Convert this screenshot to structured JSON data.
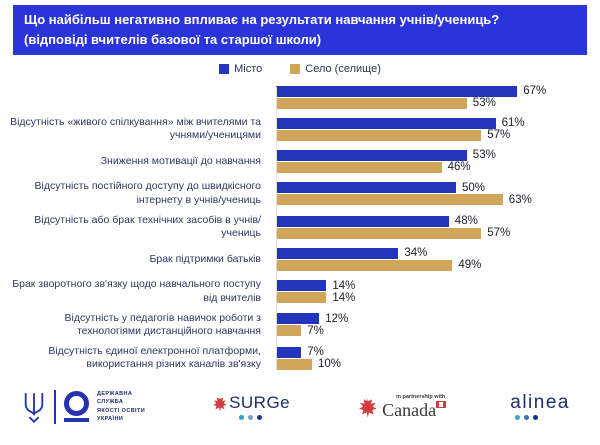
{
  "header": {
    "title_line1": "Що найбільш негативно впливає на результати навчання учнів/учениць?",
    "title_line2": "(відповіді вчителів базової та старшої школи)",
    "background": "#2b34d9",
    "text_color": "#ffffff"
  },
  "chart_data": {
    "type": "bar",
    "orientation": "horizontal",
    "title": "Що найбільш негативно впливає на результати навчання учнів/учениць? (відповіді вчителів базової та старшої школи)",
    "value_suffix": "%",
    "grid": false,
    "legend_position": "top",
    "xlim": [
      0,
      100
    ],
    "categories": [
      "",
      "Відсутність «живого спілкування» між вчителями та учнями/ученицями",
      "Зниження мотивації до навчання",
      "Відсутність постійного доступу до швидкісного інтернету в учнів/учениць",
      "Відсутність або брак технічних засобів в учнів/учениць",
      "Брак підтримки батьків",
      "Брак зворотного зв'язку щодо навчального поступу від вчителів",
      "Відсутність у педагогів навичок роботи з технологіями дистанційного навчання",
      "Відсутність єдиної електронної платформи, використання різних каналів зв'язку"
    ],
    "series": [
      {
        "name": "Місто",
        "color": "#2535bb",
        "values": [
          67,
          61,
          53,
          50,
          48,
          34,
          14,
          12,
          7
        ]
      },
      {
        "name": "Село (селище)",
        "color": "#d2a65a",
        "values": [
          53,
          57,
          46,
          63,
          57,
          49,
          14,
          7,
          10
        ]
      }
    ]
  },
  "styles": {
    "label_text_color": "#2e3760",
    "value_text_color": "#20202a",
    "axis_line_color": "#dcdcdc"
  },
  "footer": {
    "logos": [
      {
        "id": "state-service-ukraine",
        "color": "#2433b0",
        "text_lines": [
          "ДЕРЖАВНА",
          "СЛУЖБА",
          "ЯКОСТІ ОСВІТИ",
          "УКРАЇНИ"
        ]
      },
      {
        "id": "surge",
        "label": "SURGe",
        "leaf_color": "#cf3e44",
        "dot_colors": [
          "#31a3c4",
          "#7c9cc4",
          "#143a8c"
        ]
      },
      {
        "id": "canada",
        "tagline": "in partnership with",
        "label": "Canada",
        "leaf_color": "#d23b3f"
      },
      {
        "id": "alinea",
        "label": "alinea",
        "dot_colors": [
          "#2fa9c9",
          "#3f6fae",
          "#16377e"
        ]
      }
    ]
  }
}
